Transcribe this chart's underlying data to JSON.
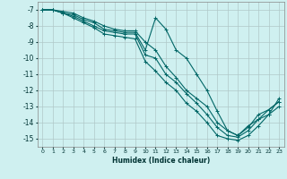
{
  "title": "",
  "xlabel": "Humidex (Indice chaleur)",
  "bg_color": "#cff0f0",
  "grid_color": "#b0c8c8",
  "line_color": "#006666",
  "xlim": [
    -0.5,
    23.5
  ],
  "ylim": [
    -15.5,
    -6.5
  ],
  "yticks": [
    -7,
    -8,
    -9,
    -10,
    -11,
    -12,
    -13,
    -14,
    -15
  ],
  "xticks": [
    0,
    1,
    2,
    3,
    4,
    5,
    6,
    7,
    8,
    9,
    10,
    11,
    12,
    13,
    14,
    15,
    16,
    17,
    18,
    19,
    20,
    21,
    22,
    23
  ],
  "series": [
    {
      "x": [
        0,
        1,
        2,
        3,
        4,
        5,
        6,
        7,
        8,
        9,
        10,
        11,
        12,
        13,
        14,
        15,
        16,
        17,
        18,
        19,
        20,
        21,
        22,
        23
      ],
      "y": [
        -7.0,
        -7.0,
        -7.2,
        -7.3,
        -7.6,
        -7.8,
        -8.2,
        -8.3,
        -8.4,
        -8.4,
        -9.5,
        -7.5,
        -8.2,
        -9.5,
        -10.0,
        -11.0,
        -12.0,
        -13.3,
        -14.5,
        -14.8,
        -14.3,
        -13.5,
        -13.2,
        -12.7
      ]
    },
    {
      "x": [
        0,
        1,
        2,
        3,
        4,
        5,
        6,
        7,
        8,
        9,
        10,
        11,
        12,
        13,
        14,
        15,
        16,
        17,
        18,
        19,
        20,
        21,
        22,
        23
      ],
      "y": [
        -7.0,
        -7.0,
        -7.2,
        -7.5,
        -7.8,
        -8.1,
        -8.5,
        -8.6,
        -8.7,
        -8.8,
        -10.2,
        -10.8,
        -11.5,
        -12.0,
        -12.8,
        -13.3,
        -14.0,
        -14.8,
        -15.0,
        -15.1,
        -14.8,
        -14.2,
        -13.5,
        -13.0
      ]
    },
    {
      "x": [
        0,
        1,
        2,
        3,
        4,
        5,
        6,
        7,
        8,
        9,
        10,
        11,
        12,
        13,
        14,
        15,
        16,
        17,
        18,
        19,
        20,
        21,
        22,
        23
      ],
      "y": [
        -7.0,
        -7.0,
        -7.2,
        -7.4,
        -7.7,
        -8.0,
        -8.3,
        -8.4,
        -8.5,
        -8.5,
        -9.8,
        -10.0,
        -11.0,
        -11.5,
        -12.2,
        -12.8,
        -13.5,
        -14.3,
        -14.8,
        -14.9,
        -14.5,
        -13.8,
        -13.2,
        -12.7
      ]
    },
    {
      "x": [
        0,
        1,
        2,
        3,
        4,
        5,
        6,
        7,
        8,
        9,
        10,
        11,
        12,
        13,
        14,
        15,
        16,
        17,
        18,
        19,
        20,
        21,
        22,
        23
      ],
      "y": [
        -7.0,
        -7.0,
        -7.1,
        -7.2,
        -7.5,
        -7.7,
        -8.0,
        -8.2,
        -8.3,
        -8.3,
        -9.0,
        -9.5,
        -10.5,
        -11.2,
        -12.0,
        -12.5,
        -13.0,
        -14.0,
        -14.5,
        -14.8,
        -14.2,
        -13.8,
        -13.5,
        -12.5
      ]
    }
  ]
}
